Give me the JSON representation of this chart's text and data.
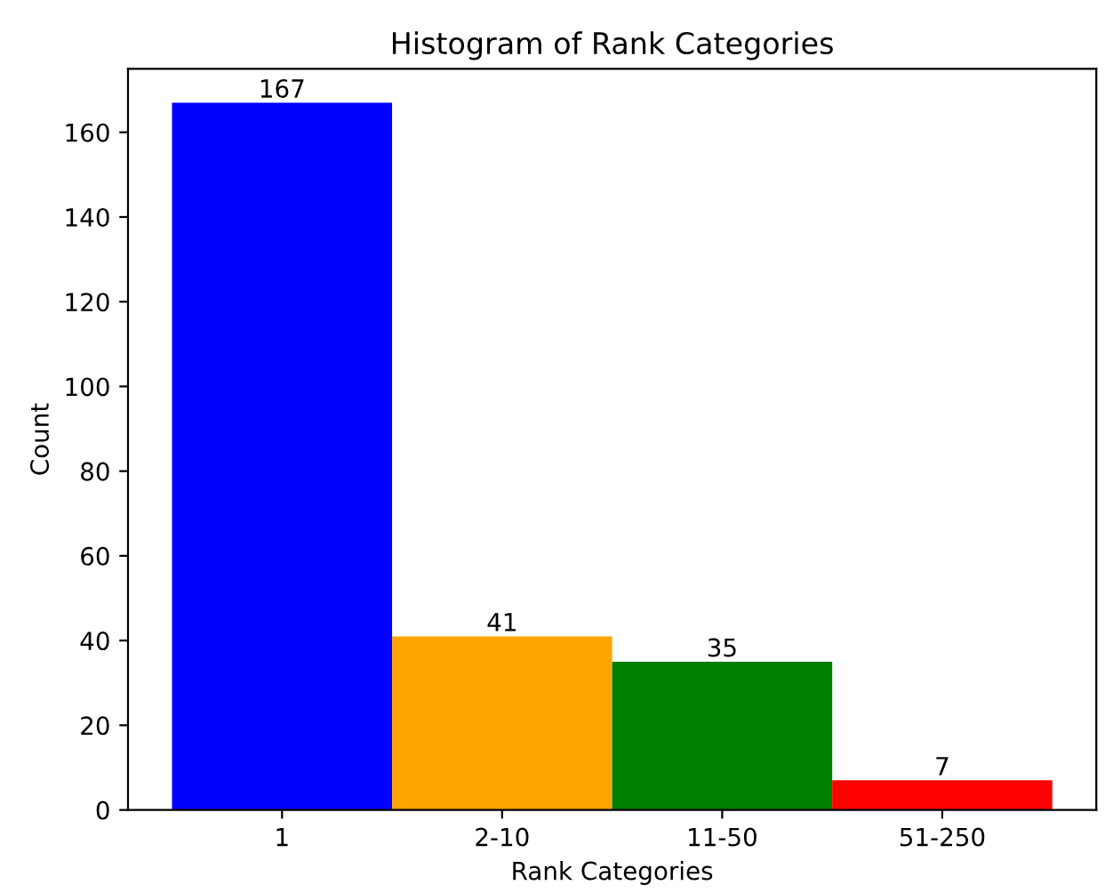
{
  "chart_data": {
    "type": "bar",
    "title": "Histogram of Rank Categories",
    "xlabel": "Rank Categories",
    "ylabel": "Count",
    "categories": [
      "1",
      "2-10",
      "11-50",
      "51-250"
    ],
    "values": [
      167,
      41,
      35,
      7
    ],
    "colors": [
      "#0000ff",
      "#ffa500",
      "#008000",
      "#ff0000"
    ],
    "ylim": [
      0,
      175
    ],
    "yticks": [
      0,
      20,
      40,
      60,
      80,
      100,
      120,
      140,
      160
    ],
    "data_labels": true,
    "grid": false
  }
}
